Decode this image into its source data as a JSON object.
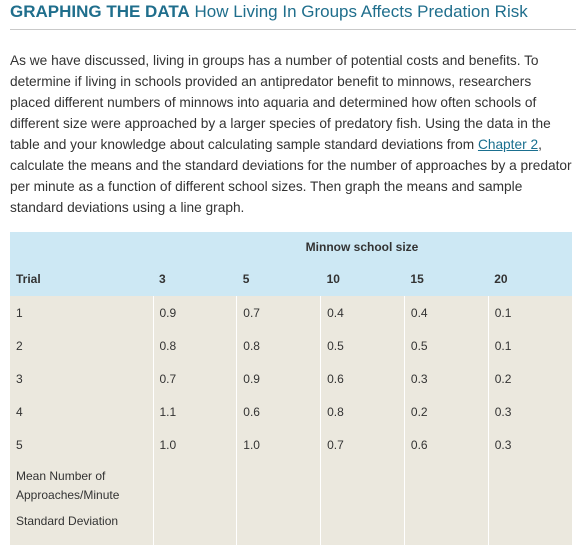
{
  "header": {
    "title_strong": "GRAPHING THE DATA",
    "title_rest": " How Living In Groups Affects Predation Risk"
  },
  "intro": {
    "text_before_link": "As we have discussed, living in groups has a number of potential costs and benefits. To determine if living in schools provided an antipredator benefit to minnows, researchers placed different numbers of minnows into aquaria and determined how often schools of different size were approached by a larger species of predatory fish. Using the data in the table and your knowledge about calculating sample standard deviations from ",
    "link_text": "Chapter 2",
    "text_after_link": ", calculate the means and the standard deviations for the number of approaches by a predator per minute as a function of different school sizes. Then graph the means and sample standard deviations using a line graph."
  },
  "table": {
    "group_header": "Minnow school size",
    "row_header": "Trial",
    "columns": [
      "3",
      "5",
      "10",
      "15",
      "20"
    ],
    "rows": [
      {
        "trial": "1",
        "values": [
          "0.9",
          "0.7",
          "0.4",
          "0.4",
          "0.1"
        ]
      },
      {
        "trial": "2",
        "values": [
          "0.8",
          "0.8",
          "0.5",
          "0.5",
          "0.1"
        ]
      },
      {
        "trial": "3",
        "values": [
          "0.7",
          "0.9",
          "0.6",
          "0.3",
          "0.2"
        ]
      },
      {
        "trial": "4",
        "values": [
          "1.1",
          "0.6",
          "0.8",
          "0.2",
          "0.3"
        ]
      },
      {
        "trial": "5",
        "values": [
          "1.0",
          "1.0",
          "0.7",
          "0.6",
          "0.3"
        ]
      }
    ],
    "mean_label_line1": "Mean Number of",
    "mean_label_line2": "Approaches/Minute",
    "sd_label": "Standard Deviation"
  }
}
